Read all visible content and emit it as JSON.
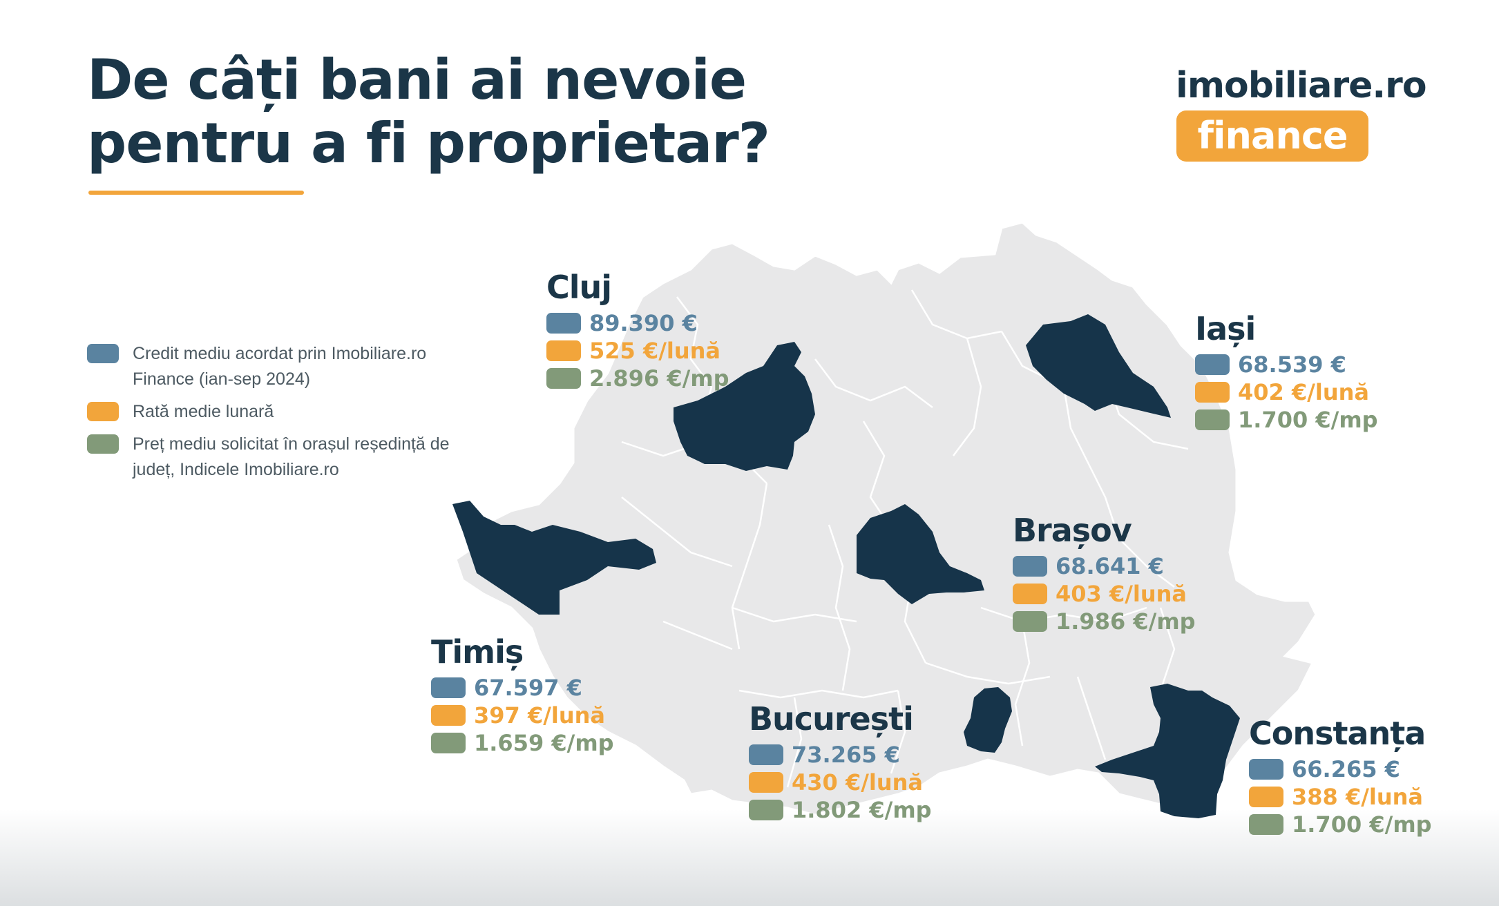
{
  "title": {
    "line1": "De câți bani ai nevoie",
    "line2": "pentru a fi proprietar?"
  },
  "logo": {
    "wordmark": "imobiliare.ro",
    "finance": "finance"
  },
  "colors": {
    "dark_navy": "#1b3648",
    "orange": "#f2a53b",
    "credit_blue": "#5a83a0",
    "rate_orange": "#f2a53b",
    "price_green": "#829a79",
    "map_gray": "#e8e8e9"
  },
  "legend": [
    {
      "label": "Credit mediu acordat prin Imobiliare.ro Finance (ian-sep 2024)",
      "color": "#5a83a0"
    },
    {
      "label": "Rată medie lunară",
      "color": "#f2a53b"
    },
    {
      "label": "Preț mediu solicitat în orașul reședință de județ, Indicele Imobiliare.ro",
      "color": "#829a79"
    }
  ],
  "counties": {
    "cluj": {
      "name": "Cluj",
      "credit": "89.390 €",
      "rate": "525 €/lună",
      "price": "2.896 €/mp"
    },
    "iasi": {
      "name": "Iași",
      "credit": "68.539 €",
      "rate": "402 €/lună",
      "price": "1.700 €/mp"
    },
    "brasov": {
      "name": "Brașov",
      "credit": "68.641 €",
      "rate": "403 €/lună",
      "price": "1.986 €/mp"
    },
    "timis": {
      "name": "Timiș",
      "credit": "67.597 €",
      "rate": "397 €/lună",
      "price": "1.659 €/mp"
    },
    "bucuresti": {
      "name": "București",
      "credit": "73.265 €",
      "rate": "430 €/lună",
      "price": "1.802 €/mp"
    },
    "constanta": {
      "name": "Constanța",
      "credit": "66.265 €",
      "rate": "388 €/lună",
      "price": "1.700 €/mp"
    }
  }
}
